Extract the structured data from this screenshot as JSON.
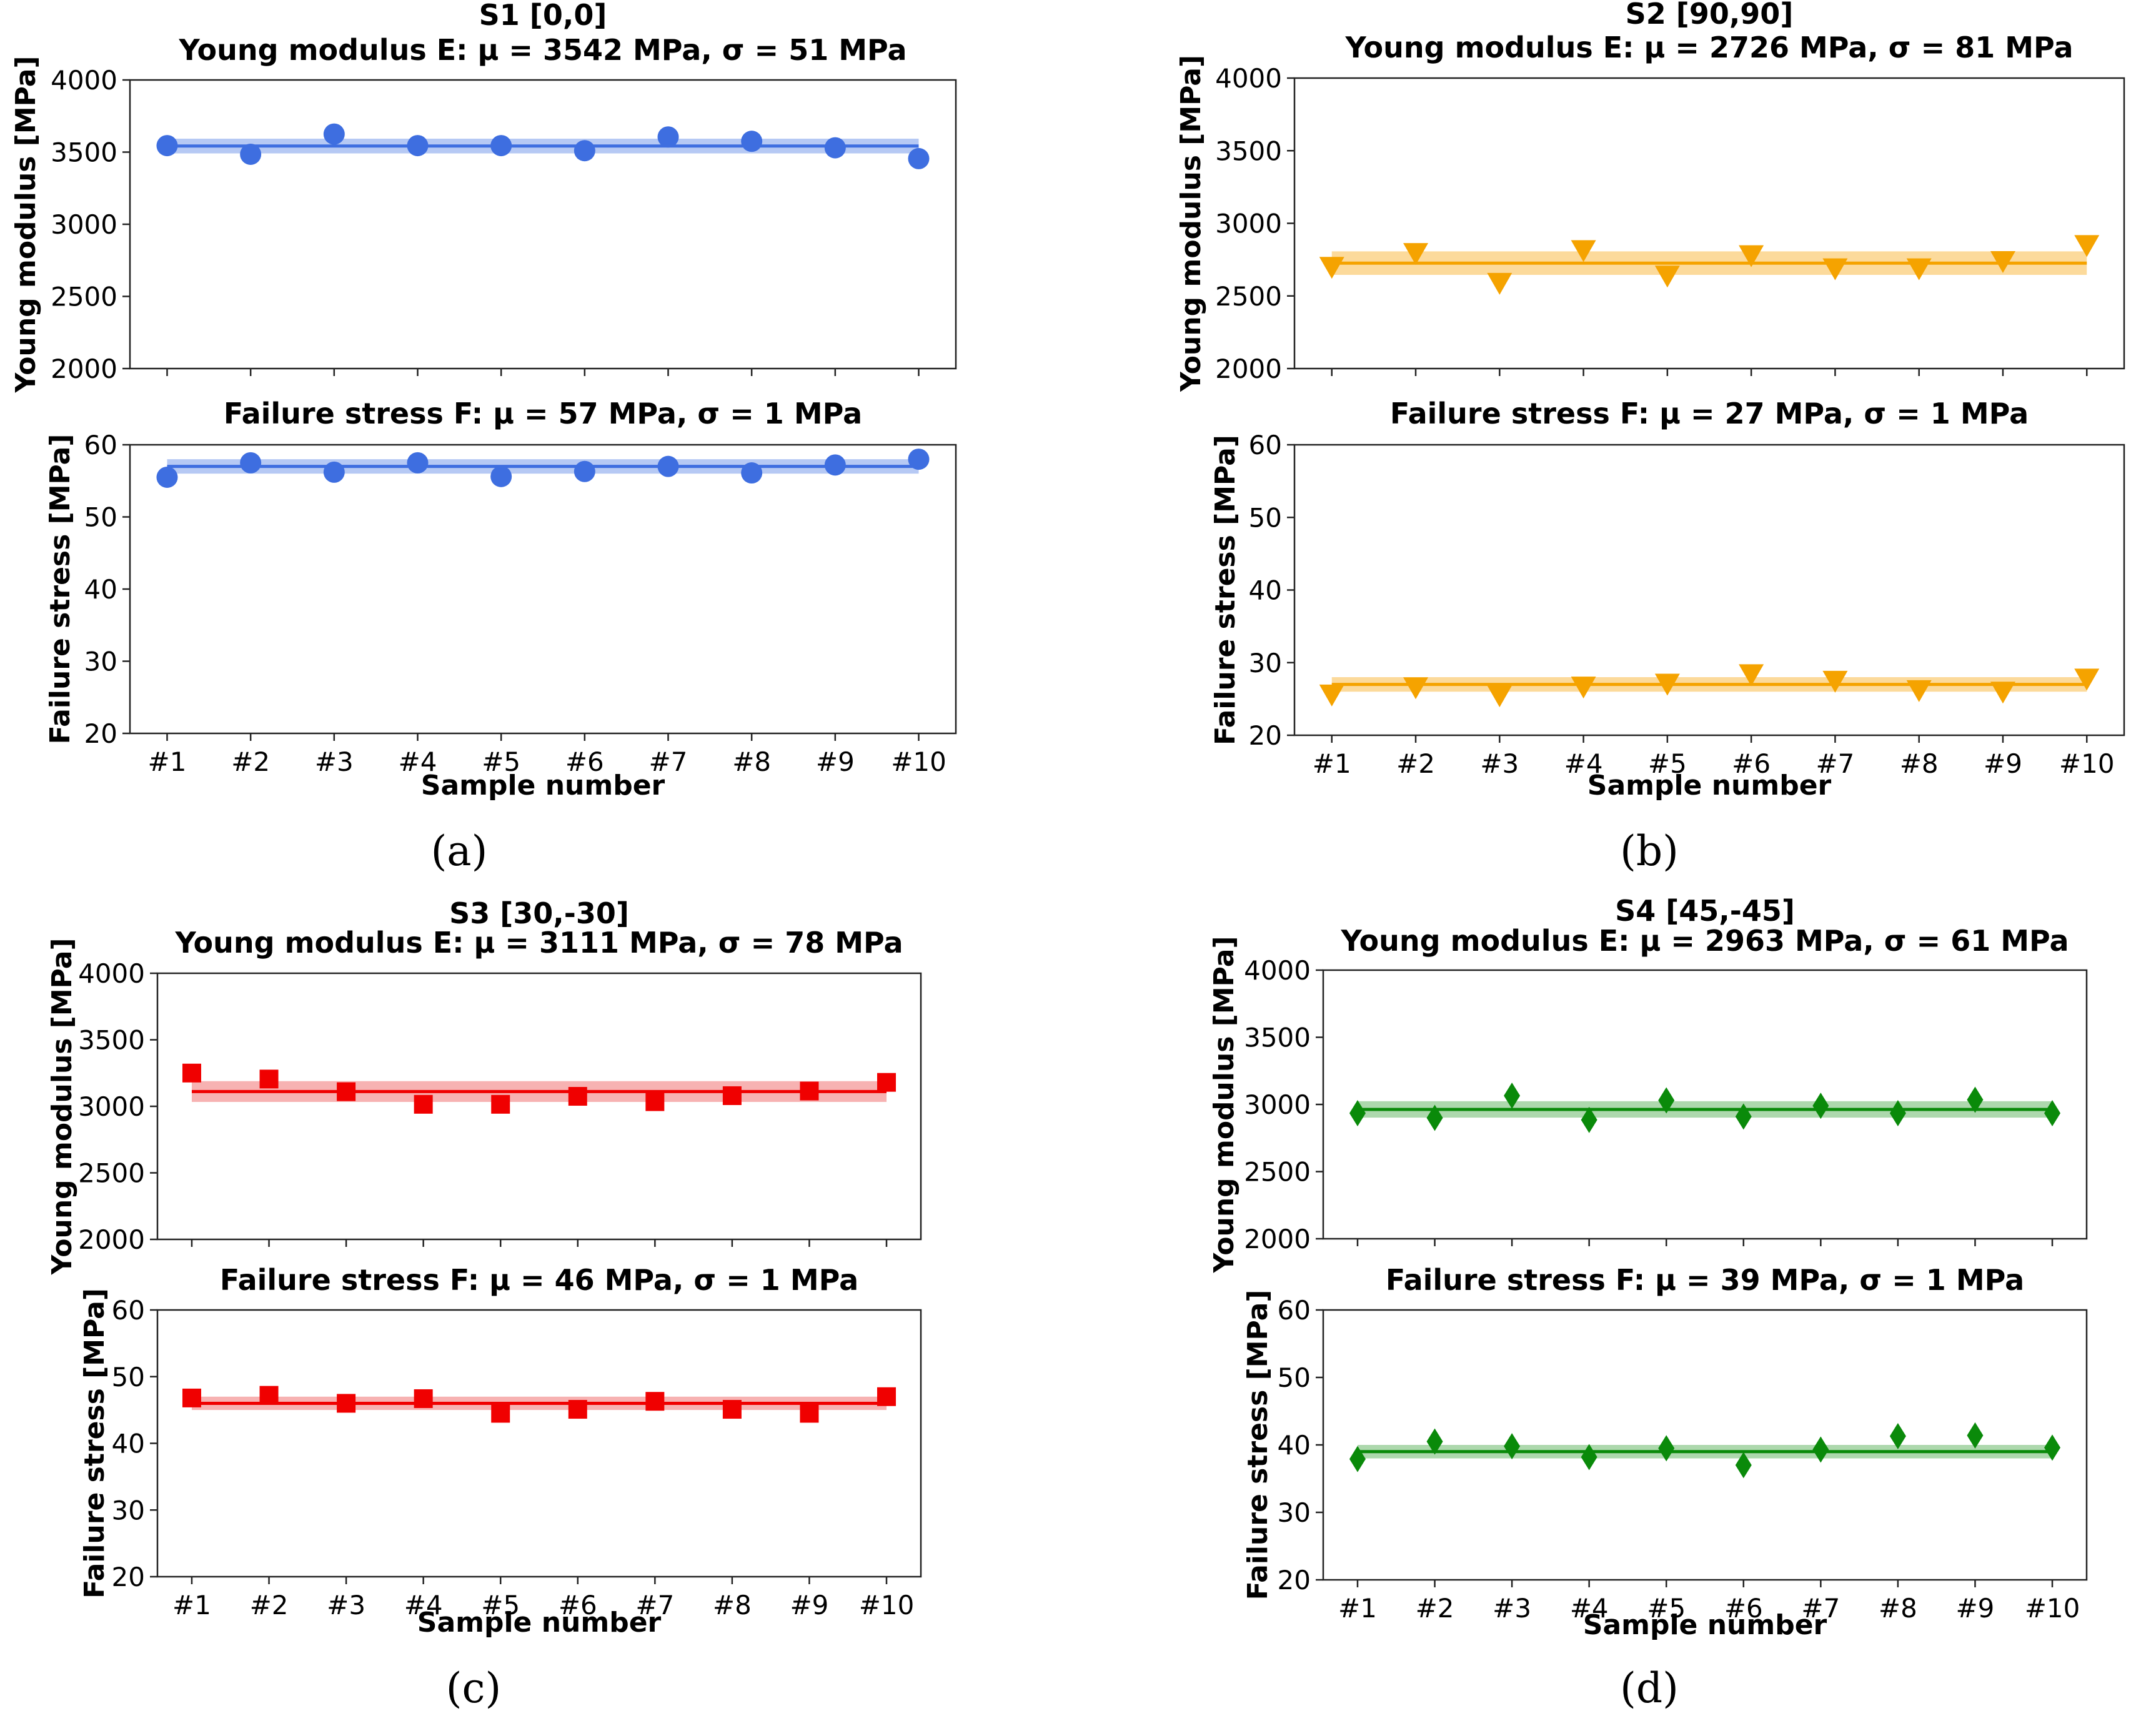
{
  "figure": {
    "captions": [
      "(a)",
      "(b)",
      "(c)",
      "(d)"
    ],
    "x_categories": [
      "#1",
      "#2",
      "#3",
      "#4",
      "#5",
      "#6",
      "#7",
      "#8",
      "#9",
      "#10"
    ],
    "x_label": "Sample number",
    "y_label_modulus": "Young modulus [MPa]",
    "y_label_stress": "Failure stress [MPa]"
  },
  "chart_data": [
    {
      "type": "scatter",
      "panel": "a",
      "title": "S1 [0,0]",
      "marker": "circle",
      "color": "#3e6ee0",
      "band_color": "#a9bff2",
      "modulus": {
        "subtitle": "Young modulus E:  μ = 3542 MPa, σ = 51 MPa",
        "mean": 3542,
        "std": 51,
        "ylim": [
          2000,
          4000
        ],
        "yticks": [
          2000,
          2500,
          3000,
          3500,
          4000
        ],
        "values": [
          3545,
          3485,
          3625,
          3545,
          3545,
          3510,
          3605,
          3575,
          3530,
          3455
        ]
      },
      "stress": {
        "subtitle": "Failure stress F:  μ = 57 MPa, σ = 1 MPa",
        "mean": 57,
        "std": 1,
        "ylim": [
          20,
          60
        ],
        "yticks": [
          20,
          30,
          40,
          50,
          60
        ],
        "values": [
          55.5,
          57.5,
          56.2,
          57.5,
          55.6,
          56.3,
          57,
          56.1,
          57.2,
          58
        ]
      }
    },
    {
      "type": "scatter",
      "panel": "b",
      "title": "S2 [90,90]",
      "marker": "triangle-down",
      "color": "#f5a300",
      "band_color": "#fbd38a",
      "modulus": {
        "subtitle": "Young modulus E:  μ = 2726 MPa, σ = 81 MPa",
        "mean": 2726,
        "std": 81,
        "ylim": [
          2000,
          4000
        ],
        "yticks": [
          2000,
          2500,
          3000,
          3500,
          4000
        ],
        "values": [
          2700,
          2795,
          2590,
          2815,
          2640,
          2780,
          2690,
          2690,
          2740,
          2850
        ]
      },
      "stress": {
        "subtitle": "Failure stress F:  μ = 27 MPa, σ = 1 MPa",
        "mean": 27,
        "std": 1,
        "ylim": [
          20,
          60
        ],
        "yticks": [
          20,
          30,
          40,
          50,
          60
        ],
        "values": [
          25.6,
          26.6,
          25.5,
          26.7,
          27.1,
          28.4,
          27.5,
          26.2,
          26,
          27.8
        ]
      }
    },
    {
      "type": "scatter",
      "panel": "c",
      "title": "S3 [30,-30]",
      "marker": "square",
      "color": "#f00000",
      "band_color": "#f6a5a5",
      "modulus": {
        "subtitle": "Young modulus E:  μ = 3111 MPa, σ = 78 MPa",
        "mean": 3111,
        "std": 78,
        "ylim": [
          2000,
          4000
        ],
        "yticks": [
          2000,
          2500,
          3000,
          3500,
          4000
        ],
        "values": [
          3250,
          3205,
          3110,
          3015,
          3015,
          3075,
          3035,
          3080,
          3115,
          3180
        ]
      },
      "stress": {
        "subtitle": "Failure stress F:  μ = 46 MPa, σ = 1 MPa",
        "mean": 46,
        "std": 1,
        "ylim": [
          20,
          60
        ],
        "yticks": [
          20,
          30,
          40,
          50,
          60
        ],
        "values": [
          46.8,
          47.2,
          46,
          46.7,
          44.5,
          45.1,
          46.3,
          45.1,
          44.5,
          47
        ]
      }
    },
    {
      "type": "scatter",
      "panel": "d",
      "title": "S4 [45,-45]",
      "marker": "diamond",
      "color": "#0a8a0a",
      "band_color": "#9fd19f",
      "modulus": {
        "subtitle": "Young modulus E:  μ = 2963 MPa, σ = 61 MPa",
        "mean": 2963,
        "std": 61,
        "ylim": [
          2000,
          4000
        ],
        "yticks": [
          2000,
          2500,
          3000,
          3500,
          4000
        ],
        "values": [
          2935,
          2900,
          3065,
          2885,
          3030,
          2910,
          2990,
          2935,
          3035,
          2935
        ]
      },
      "stress": {
        "subtitle": "Failure stress F:  μ = 39 MPa, σ = 1 MPa",
        "mean": 39,
        "std": 1,
        "ylim": [
          20,
          60
        ],
        "yticks": [
          20,
          30,
          40,
          50,
          60
        ],
        "values": [
          37.9,
          40.5,
          39.8,
          38.2,
          39.5,
          37,
          39.3,
          41.3,
          41.4,
          39.6
        ]
      }
    }
  ]
}
